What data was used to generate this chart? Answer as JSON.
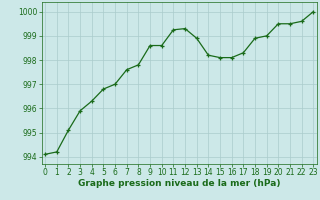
{
  "x": [
    0,
    1,
    2,
    3,
    4,
    5,
    6,
    7,
    8,
    9,
    10,
    11,
    12,
    13,
    14,
    15,
    16,
    17,
    18,
    19,
    20,
    21,
    22,
    23
  ],
  "y": [
    994.1,
    994.2,
    995.1,
    995.9,
    996.3,
    996.8,
    997.0,
    997.6,
    997.8,
    998.6,
    998.6,
    999.25,
    999.3,
    998.9,
    998.2,
    998.1,
    998.1,
    998.3,
    998.9,
    999.0,
    999.5,
    999.5,
    999.6,
    1000.0
  ],
  "line_color": "#1a6b1a",
  "marker": "+",
  "marker_size": 3.5,
  "linewidth": 0.9,
  "bg_color": "#cce8e8",
  "grid_color": "#aacccc",
  "xlabel": "Graphe pression niveau de la mer (hPa)",
  "xlabel_fontsize": 6.5,
  "xlabel_color": "#1a6b1a",
  "yticks": [
    994,
    995,
    996,
    997,
    998,
    999,
    1000
  ],
  "xticks": [
    0,
    1,
    2,
    3,
    4,
    5,
    6,
    7,
    8,
    9,
    10,
    11,
    12,
    13,
    14,
    15,
    16,
    17,
    18,
    19,
    20,
    21,
    22,
    23
  ],
  "ylim": [
    993.7,
    1000.4
  ],
  "xlim": [
    -0.3,
    23.3
  ],
  "tick_fontsize": 5.5,
  "tick_color": "#1a6b1a"
}
